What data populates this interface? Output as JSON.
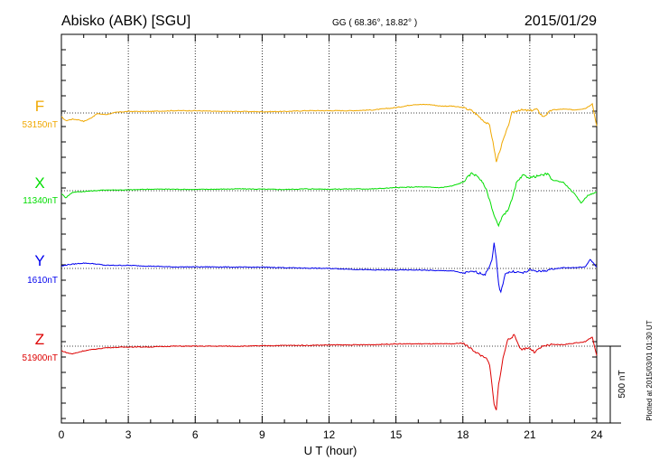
{
  "header": {
    "station": "Abisko (ABK)  [SGU]",
    "coords": "GG ( 68.36°,  18.82° )",
    "date": "2015/01/29"
  },
  "footer_note": "Plotted at 2015/03/01 01:30 UT",
  "scale_label": "500 nT",
  "chart_data": {
    "type": "line",
    "xlabel": "U T (hour)",
    "ylabel": "",
    "xlim": [
      0,
      24
    ],
    "xticks": [
      0,
      3,
      6,
      9,
      12,
      15,
      18,
      21,
      24
    ],
    "tick_labels": [
      "0",
      "3",
      "6",
      "9",
      "12",
      "15",
      "18",
      "21",
      "24"
    ],
    "grid": true,
    "scale_bar_nT": 500,
    "series": [
      {
        "name": "F",
        "baseline_label": "53150nT",
        "baseline_nT": 53150,
        "color": "#f0a800",
        "points": [
          [
            0,
            -25
          ],
          [
            0.2,
            -50
          ],
          [
            0.5,
            -40
          ],
          [
            0.8,
            -45
          ],
          [
            1.0,
            -55
          ],
          [
            1.3,
            -35
          ],
          [
            1.6,
            -5
          ],
          [
            2.0,
            -10
          ],
          [
            2.5,
            5
          ],
          [
            3,
            10
          ],
          [
            4,
            10
          ],
          [
            5,
            15
          ],
          [
            6,
            15
          ],
          [
            7,
            10
          ],
          [
            8,
            10
          ],
          [
            9,
            8
          ],
          [
            10,
            10
          ],
          [
            11,
            15
          ],
          [
            12,
            15
          ],
          [
            13,
            15
          ],
          [
            14,
            20
          ],
          [
            15,
            35
          ],
          [
            15.8,
            55
          ],
          [
            16.5,
            55
          ],
          [
            17,
            45
          ],
          [
            17.5,
            45
          ],
          [
            18,
            35
          ],
          [
            18.4,
            15
          ],
          [
            18.7,
            -20
          ],
          [
            19.0,
            -60
          ],
          [
            19.2,
            -80
          ],
          [
            19.4,
            -230
          ],
          [
            19.5,
            -320
          ],
          [
            19.6,
            -270
          ],
          [
            19.8,
            -180
          ],
          [
            20.0,
            -100
          ],
          [
            20.2,
            0
          ],
          [
            20.5,
            20
          ],
          [
            21,
            15
          ],
          [
            21.3,
            25
          ],
          [
            21.6,
            -25
          ],
          [
            22.0,
            20
          ],
          [
            22.5,
            25
          ],
          [
            23,
            20
          ],
          [
            23.5,
            30
          ],
          [
            23.8,
            60
          ],
          [
            24,
            -85
          ]
        ]
      },
      {
        "name": "X",
        "baseline_label": "11340nT",
        "baseline_nT": 11340,
        "color": "#00dd00",
        "points": [
          [
            0,
            -20
          ],
          [
            0.2,
            -45
          ],
          [
            0.5,
            -10
          ],
          [
            1.0,
            -5
          ],
          [
            2,
            5
          ],
          [
            3,
            5
          ],
          [
            4,
            10
          ],
          [
            5,
            10
          ],
          [
            6,
            8
          ],
          [
            7,
            10
          ],
          [
            8,
            12
          ],
          [
            9,
            10
          ],
          [
            10,
            8
          ],
          [
            11,
            12
          ],
          [
            12,
            10
          ],
          [
            13,
            12
          ],
          [
            14,
            12
          ],
          [
            15,
            20
          ],
          [
            16,
            25
          ],
          [
            17,
            20
          ],
          [
            17.5,
            30
          ],
          [
            18,
            55
          ],
          [
            18.4,
            115
          ],
          [
            18.7,
            90
          ],
          [
            19.0,
            25
          ],
          [
            19.2,
            -60
          ],
          [
            19.4,
            -160
          ],
          [
            19.6,
            -230
          ],
          [
            19.8,
            -160
          ],
          [
            20.0,
            -130
          ],
          [
            20.2,
            -60
          ],
          [
            20.4,
            50
          ],
          [
            20.7,
            100
          ],
          [
            21.0,
            85
          ],
          [
            21.5,
            100
          ],
          [
            21.8,
            110
          ],
          [
            22,
            70
          ],
          [
            22.5,
            55
          ],
          [
            23,
            -20
          ],
          [
            23.3,
            -80
          ],
          [
            23.6,
            -30
          ],
          [
            24,
            -10
          ]
        ]
      },
      {
        "name": "Y",
        "baseline_label": "1610nT",
        "baseline_nT": 1610,
        "color": "#0000ee",
        "points": [
          [
            0,
            15
          ],
          [
            0.3,
            25
          ],
          [
            1,
            35
          ],
          [
            1.5,
            30
          ],
          [
            2,
            20
          ],
          [
            3,
            20
          ],
          [
            4,
            15
          ],
          [
            5,
            10
          ],
          [
            6,
            10
          ],
          [
            7,
            10
          ],
          [
            8,
            8
          ],
          [
            9,
            8
          ],
          [
            10,
            5
          ],
          [
            11,
            2
          ],
          [
            12,
            0
          ],
          [
            13,
            -5
          ],
          [
            14,
            -10
          ],
          [
            15,
            -10
          ],
          [
            16,
            -10
          ],
          [
            17,
            -15
          ],
          [
            17.5,
            -15
          ],
          [
            18,
            -30
          ],
          [
            18.5,
            -20
          ],
          [
            19.0,
            -40
          ],
          [
            19.3,
            50
          ],
          [
            19.4,
            160
          ],
          [
            19.5,
            60
          ],
          [
            19.6,
            -100
          ],
          [
            19.7,
            -160
          ],
          [
            19.9,
            -30
          ],
          [
            20.3,
            -20
          ],
          [
            20.7,
            -30
          ],
          [
            21,
            -10
          ],
          [
            21.5,
            -20
          ],
          [
            22,
            -5
          ],
          [
            22.5,
            5
          ],
          [
            23,
            5
          ],
          [
            23.5,
            10
          ],
          [
            23.7,
            60
          ],
          [
            24,
            10
          ]
        ]
      },
      {
        "name": "Z",
        "baseline_label": "51900nT",
        "baseline_nT": 51900,
        "color": "#dd0000",
        "points": [
          [
            0,
            -30
          ],
          [
            0.3,
            -45
          ],
          [
            0.5,
            -50
          ],
          [
            1,
            -30
          ],
          [
            1.5,
            -20
          ],
          [
            2,
            -10
          ],
          [
            3,
            -5
          ],
          [
            4,
            -5
          ],
          [
            5,
            0
          ],
          [
            6,
            0
          ],
          [
            7,
            0
          ],
          [
            8,
            0
          ],
          [
            9,
            2
          ],
          [
            10,
            5
          ],
          [
            11,
            5
          ],
          [
            12,
            8
          ],
          [
            13,
            8
          ],
          [
            14,
            10
          ],
          [
            15,
            15
          ],
          [
            16,
            15
          ],
          [
            17,
            15
          ],
          [
            17.5,
            15
          ],
          [
            18,
            20
          ],
          [
            18.5,
            -30
          ],
          [
            18.8,
            -60
          ],
          [
            19.0,
            -70
          ],
          [
            19.2,
            -120
          ],
          [
            19.4,
            -380
          ],
          [
            19.5,
            -420
          ],
          [
            19.6,
            -250
          ],
          [
            19.8,
            -80
          ],
          [
            20.0,
            40
          ],
          [
            20.3,
            70
          ],
          [
            20.6,
            -20
          ],
          [
            21,
            -10
          ],
          [
            21.2,
            -40
          ],
          [
            21.6,
            0
          ],
          [
            22,
            10
          ],
          [
            22.5,
            10
          ],
          [
            23,
            20
          ],
          [
            23.5,
            30
          ],
          [
            23.8,
            60
          ],
          [
            24,
            -60
          ]
        ]
      }
    ]
  }
}
